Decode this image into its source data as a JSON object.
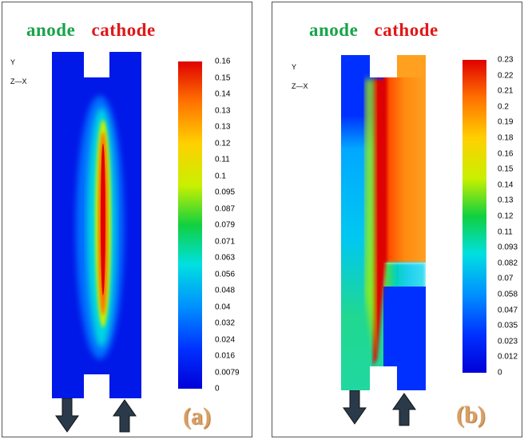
{
  "panels": [
    {
      "id": "a",
      "anode": "anode",
      "cathode": "cathode",
      "axis_y": "Y",
      "axis_zx": "Z—X",
      "label": "(a)",
      "ticks": [
        "0.16",
        "0.15",
        "0.14",
        "0.13",
        "0.13",
        "0.12",
        "0.11",
        "0.1",
        "0.095",
        "0.087",
        "0.079",
        "0.071",
        "0.063",
        "0.056",
        "0.048",
        "0.04",
        "0.032",
        "0.024",
        "0.016",
        "0.0079",
        "0"
      ]
    },
    {
      "id": "b",
      "anode": "anode",
      "cathode": "cathode",
      "axis_y": "Y",
      "axis_zx": "Z—X",
      "label": "(b)",
      "ticks": [
        "0.23",
        "0.22",
        "0.21",
        "0.2",
        "0.19",
        "0.18",
        "0.16",
        "0.15",
        "0.14",
        "0.13",
        "0.12",
        "0.11",
        "0.093",
        "0.082",
        "0.07",
        "0.058",
        "0.047",
        "0.035",
        "0.023",
        "0.012",
        "0"
      ]
    }
  ],
  "colors": {
    "anode": "#19a34a",
    "cathode": "#e01818",
    "label": "#d9a064",
    "arrow": "#2a3a4a"
  },
  "icons": {
    "down": "down-arrow-icon",
    "up": "up-arrow-icon"
  }
}
